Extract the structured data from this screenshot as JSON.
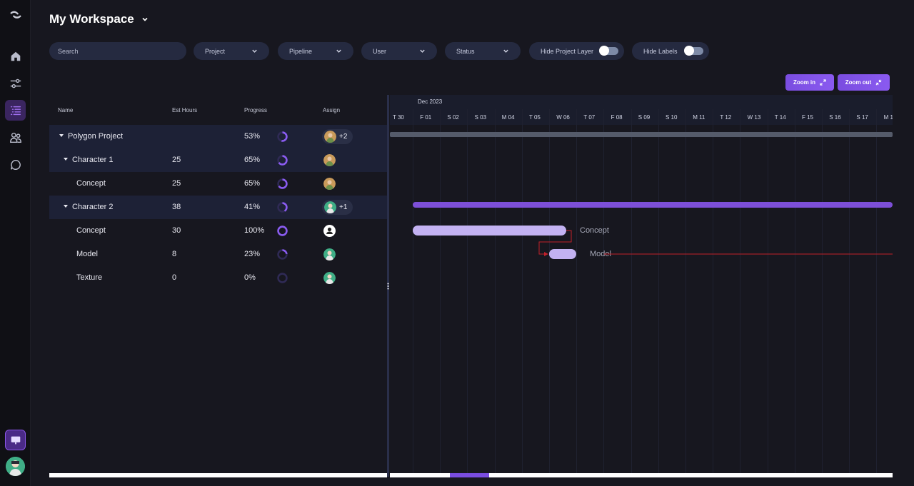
{
  "header": {
    "title": "My Workspace"
  },
  "filters": {
    "search_placeholder": "Search",
    "project": "Project",
    "pipeline": "Pipeline",
    "user": "User",
    "status": "Status",
    "hide_project_layer": "Hide Project Layer",
    "hide_labels": "Hide Labels"
  },
  "zoom": {
    "zoom_in": "Zoom in",
    "zoom_out": "Zoom out"
  },
  "table": {
    "columns": {
      "name": "Name",
      "est_hours": "Est Hours",
      "progress": "Progress",
      "assign": "Assign"
    },
    "rows": [
      {
        "name": "Polygon Project",
        "est": "",
        "progress": "53%",
        "pct": 0.53,
        "assign_extra": "+2"
      },
      {
        "name": "Character 1",
        "est": "25",
        "progress": "65%",
        "pct": 0.65,
        "assign_extra": ""
      },
      {
        "name": "Concept",
        "est": "25",
        "progress": "65%",
        "pct": 0.65,
        "assign_extra": ""
      },
      {
        "name": "Character 2",
        "est": "38",
        "progress": "41%",
        "pct": 0.41,
        "assign_extra": "+1"
      },
      {
        "name": "Concept",
        "est": "30",
        "progress": "100%",
        "pct": 1.0,
        "assign_extra": ""
      },
      {
        "name": "Model",
        "est": "8",
        "progress": "23%",
        "pct": 0.23,
        "assign_extra": ""
      },
      {
        "name": "Texture",
        "est": "0",
        "progress": "0%",
        "pct": 0,
        "assign_extra": ""
      }
    ]
  },
  "gantt": {
    "month": "Dec 2023",
    "days": [
      "T 30",
      "F 01",
      "S 02",
      "S 03",
      "M 04",
      "T 05",
      "W 06",
      "T 07",
      "F 08",
      "S 09",
      "S 10",
      "M 11",
      "T 12",
      "W 13",
      "T 14",
      "F 15",
      "S 16",
      "S 17",
      "M 1"
    ],
    "labels": {
      "concept": "Concept",
      "model": "Model"
    }
  },
  "colors": {
    "accent": "#7a4de0",
    "bar_light": "#c3b2f2",
    "project_bar": "#555b6a",
    "dependency": "#c0202a"
  }
}
